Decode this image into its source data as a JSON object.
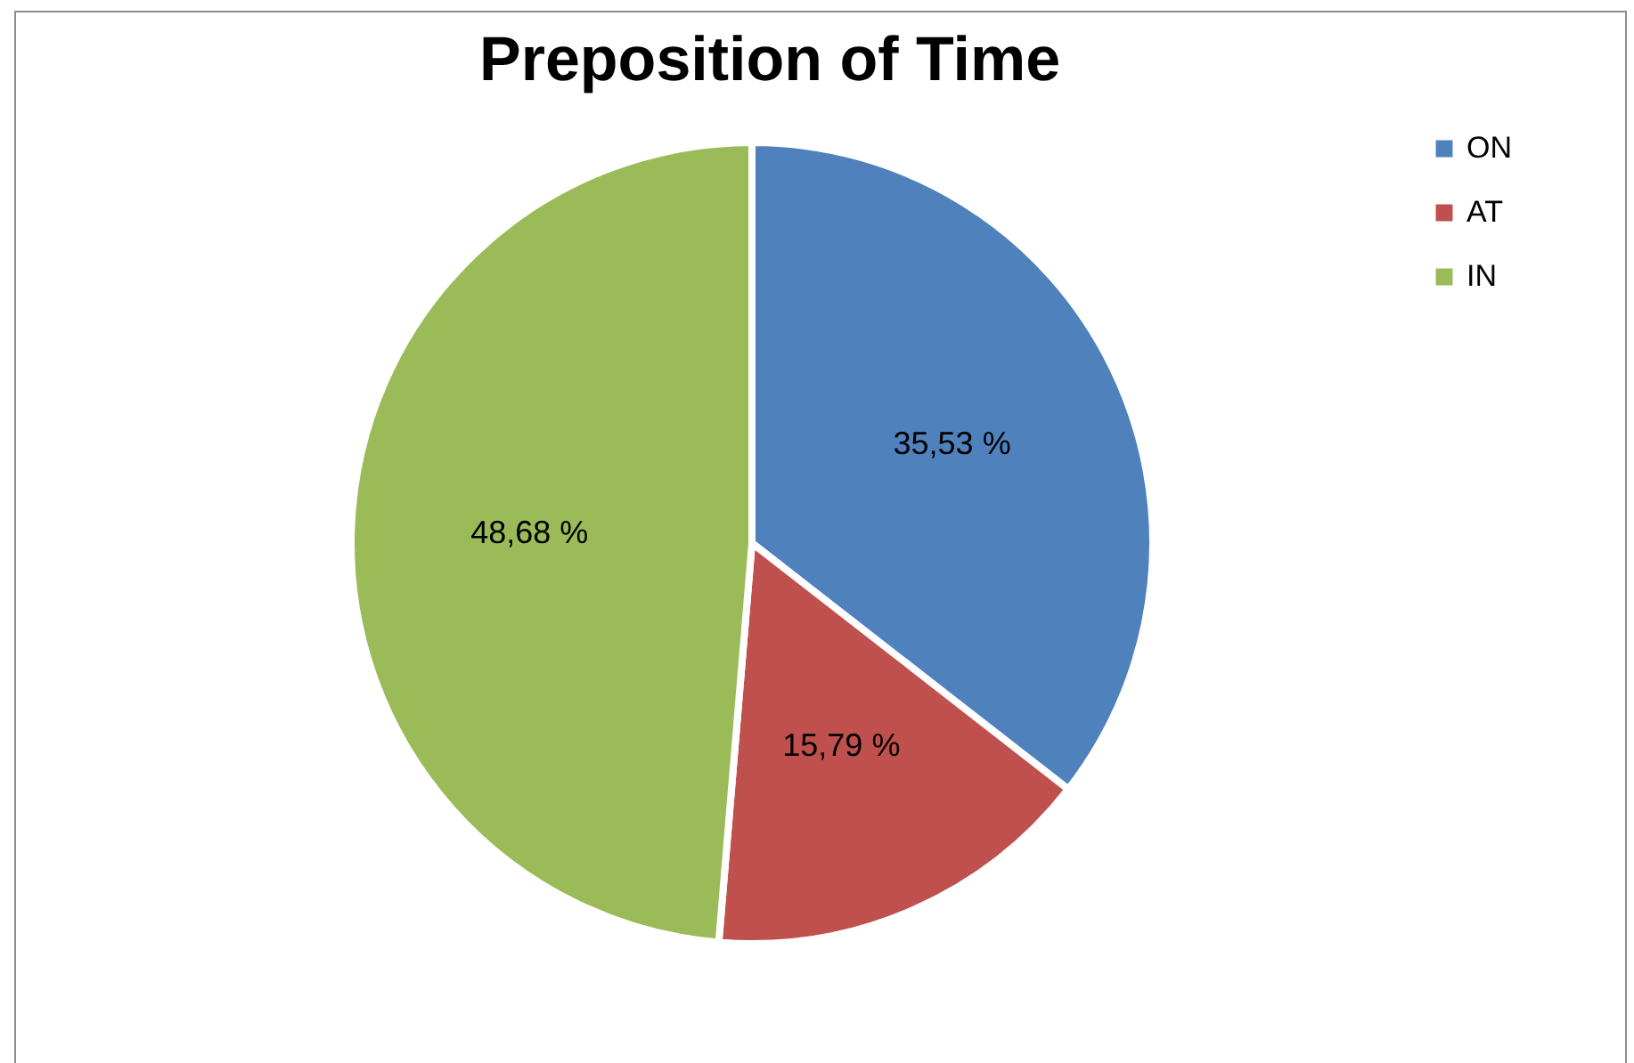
{
  "chart_data": {
    "type": "pie",
    "title": "Preposition of Time",
    "categories": [
      "ON",
      "AT",
      "IN"
    ],
    "values": [
      35.53,
      15.79,
      48.68
    ],
    "value_labels": [
      "35,53 %",
      "15,79 %",
      "48,68 %"
    ],
    "colors": [
      "#4f81bd",
      "#c0504d",
      "#9bbb59"
    ],
    "legend": "right"
  }
}
